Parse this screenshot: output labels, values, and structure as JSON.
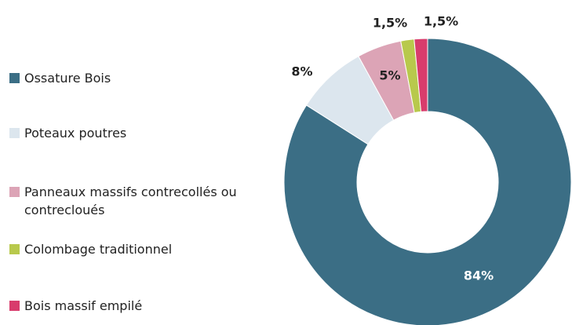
{
  "chart_data": {
    "type": "donut",
    "categories": [
      "Ossature Bois",
      "Poteaux poutres",
      "Panneaux massifs contrecollés ou contrecloués",
      "Colombage traditionnel",
      "Bois massif empilé"
    ],
    "values": [
      84,
      8,
      5,
      1.5,
      1.5
    ],
    "value_labels": [
      "84%",
      "8%",
      "5%",
      "1,5%",
      "1,5%"
    ],
    "colors": [
      "#3b6e85",
      "#dce6ee",
      "#dca4b6",
      "#b8c94c",
      "#d83c6c"
    ]
  }
}
